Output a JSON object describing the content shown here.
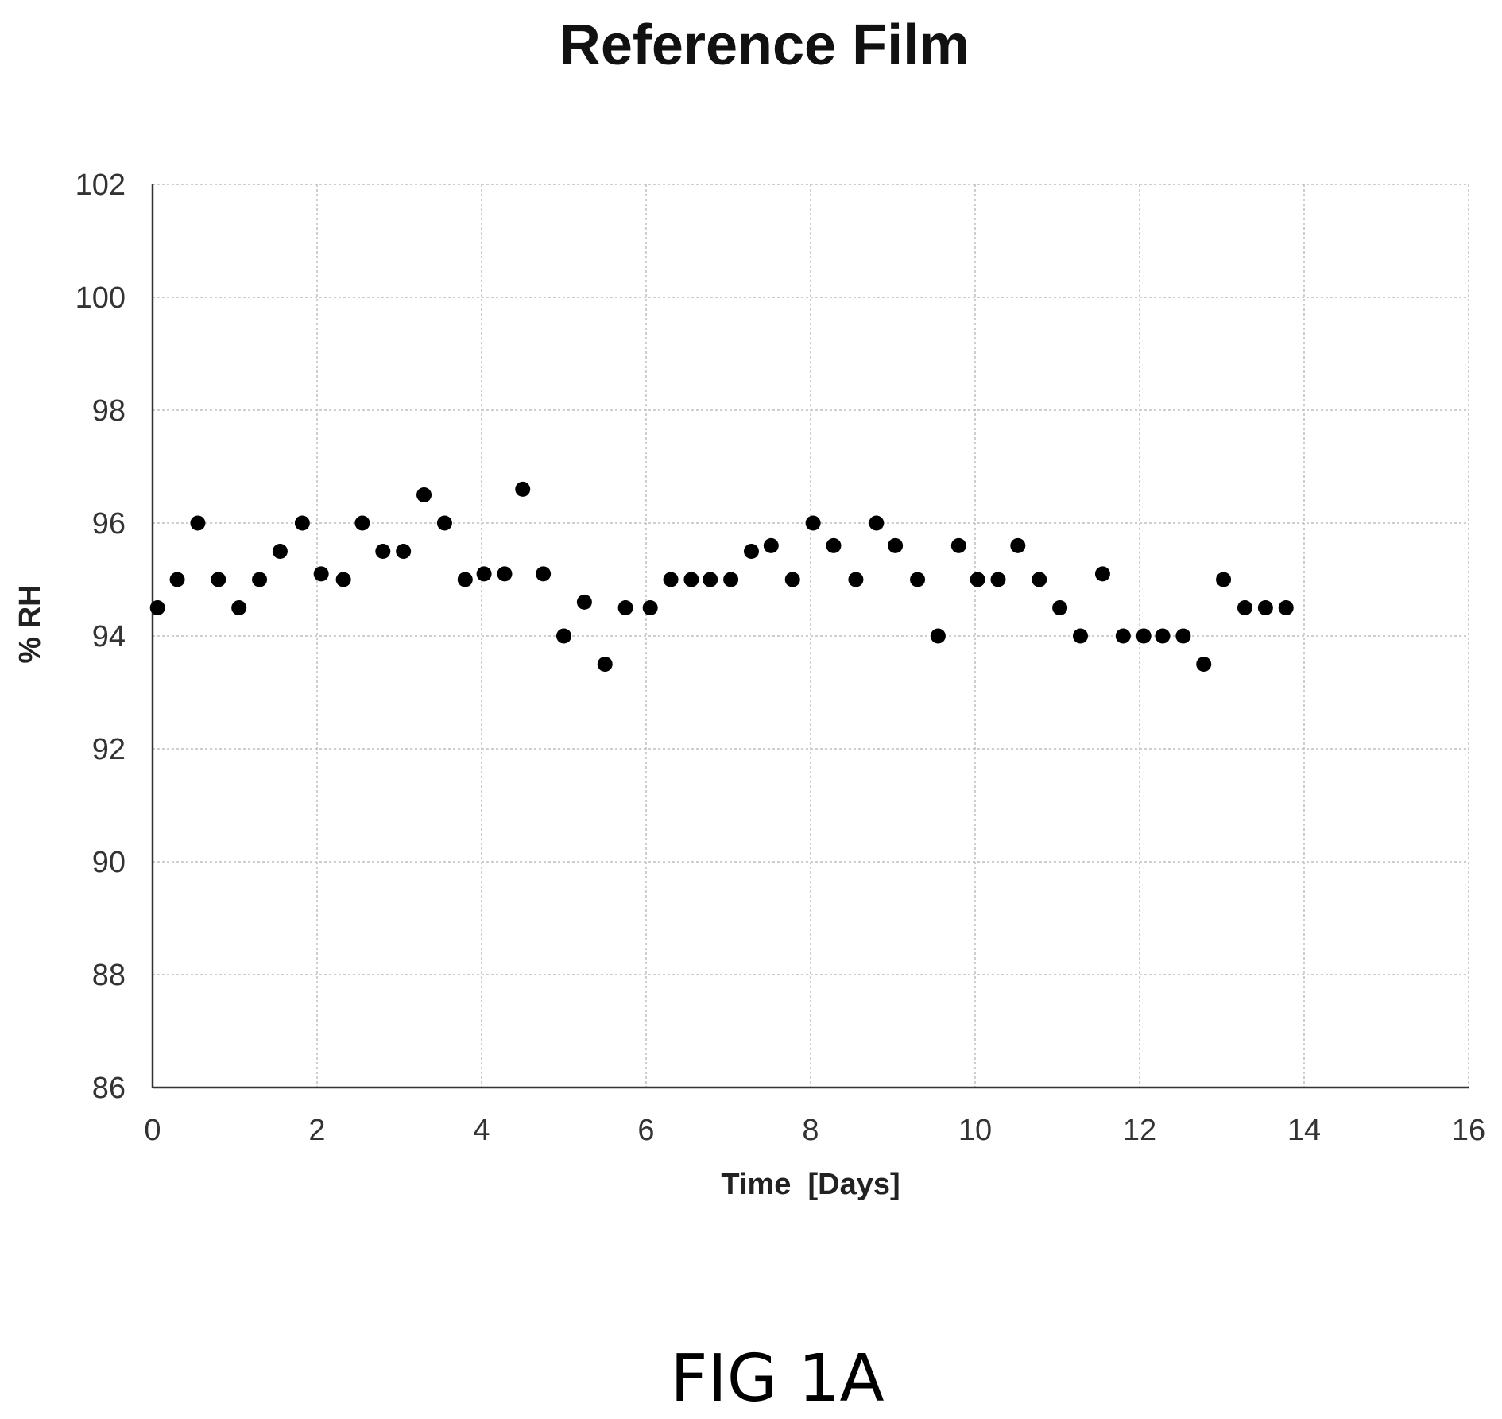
{
  "chart_data": {
    "type": "scatter",
    "title": "Reference Film",
    "xlabel": "Time  [Days]",
    "ylabel": "% RH",
    "xlim": [
      0,
      16
    ],
    "ylim": [
      86,
      102
    ],
    "xticks": [
      0,
      2,
      4,
      6,
      8,
      10,
      12,
      14,
      16
    ],
    "yticks": [
      86,
      88,
      90,
      92,
      94,
      96,
      98,
      100,
      102
    ],
    "grid": true,
    "marker_color": "#000000",
    "points": [
      {
        "x": 0.06,
        "y": 94.5
      },
      {
        "x": 0.3,
        "y": 95.0
      },
      {
        "x": 0.55,
        "y": 96.0
      },
      {
        "x": 0.8,
        "y": 95.0
      },
      {
        "x": 1.05,
        "y": 94.5
      },
      {
        "x": 1.3,
        "y": 95.0
      },
      {
        "x": 1.55,
        "y": 95.5
      },
      {
        "x": 1.82,
        "y": 96.0
      },
      {
        "x": 2.05,
        "y": 95.1
      },
      {
        "x": 2.32,
        "y": 95.0
      },
      {
        "x": 2.55,
        "y": 96.0
      },
      {
        "x": 2.8,
        "y": 95.5
      },
      {
        "x": 3.05,
        "y": 95.5
      },
      {
        "x": 3.3,
        "y": 96.5
      },
      {
        "x": 3.55,
        "y": 96.0
      },
      {
        "x": 3.8,
        "y": 95.0
      },
      {
        "x": 4.03,
        "y": 95.1
      },
      {
        "x": 4.28,
        "y": 95.1
      },
      {
        "x": 4.5,
        "y": 96.6
      },
      {
        "x": 4.75,
        "y": 95.1
      },
      {
        "x": 5.0,
        "y": 94.0
      },
      {
        "x": 5.25,
        "y": 94.6
      },
      {
        "x": 5.5,
        "y": 93.5
      },
      {
        "x": 5.75,
        "y": 94.5
      },
      {
        "x": 6.05,
        "y": 94.5
      },
      {
        "x": 6.3,
        "y": 95.0
      },
      {
        "x": 6.55,
        "y": 95.0
      },
      {
        "x": 6.78,
        "y": 95.0
      },
      {
        "x": 7.03,
        "y": 95.0
      },
      {
        "x": 7.28,
        "y": 95.5
      },
      {
        "x": 7.52,
        "y": 95.6
      },
      {
        "x": 7.78,
        "y": 95.0
      },
      {
        "x": 8.03,
        "y": 96.0
      },
      {
        "x": 8.28,
        "y": 95.6
      },
      {
        "x": 8.55,
        "y": 95.0
      },
      {
        "x": 8.8,
        "y": 96.0
      },
      {
        "x": 9.03,
        "y": 95.6
      },
      {
        "x": 9.3,
        "y": 95.0
      },
      {
        "x": 9.55,
        "y": 94.0
      },
      {
        "x": 9.8,
        "y": 95.6
      },
      {
        "x": 10.03,
        "y": 95.0
      },
      {
        "x": 10.28,
        "y": 95.0
      },
      {
        "x": 10.52,
        "y": 95.6
      },
      {
        "x": 10.78,
        "y": 95.0
      },
      {
        "x": 11.03,
        "y": 94.5
      },
      {
        "x": 11.28,
        "y": 94.0
      },
      {
        "x": 11.55,
        "y": 95.1
      },
      {
        "x": 11.8,
        "y": 94.0
      },
      {
        "x": 12.05,
        "y": 94.0
      },
      {
        "x": 12.28,
        "y": 94.0
      },
      {
        "x": 12.53,
        "y": 94.0
      },
      {
        "x": 12.78,
        "y": 93.5
      },
      {
        "x": 13.02,
        "y": 95.0
      },
      {
        "x": 13.28,
        "y": 94.5
      },
      {
        "x": 13.53,
        "y": 94.5
      },
      {
        "x": 13.78,
        "y": 94.5
      }
    ]
  },
  "figure_label": "FIG 1A"
}
